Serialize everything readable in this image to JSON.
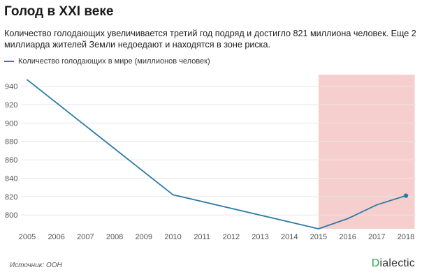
{
  "header": {
    "title": "Голод в XXI веке",
    "subtitle": "Количество голодающих увеличивается третий год подряд и достигло 821 миллиона человек. Еще 2 миллиарда жителей Земли недоедают и находятся в зоне риска."
  },
  "colors": {
    "line": "#2d7ba3",
    "highlight": "#f4c6c6",
    "grid": "#e6e6e6"
  },
  "chart_data": {
    "type": "line",
    "title": "Голод в XXI веке",
    "xlabel": "",
    "ylabel": "",
    "x": [
      2005,
      2006,
      2007,
      2008,
      2009,
      2010,
      2011,
      2012,
      2013,
      2014,
      2015,
      2016,
      2017,
      2018
    ],
    "categories": [
      "2005",
      "2006",
      "2007",
      "2008",
      "2009",
      "2010",
      "2011",
      "2012",
      "2013",
      "2014",
      "2015",
      "2016",
      "2017",
      "2018"
    ],
    "series": [
      {
        "name": "Количество голодающих в мире (миллионов человек)",
        "x": [
          2005,
          2010,
          2015,
          2016,
          2017,
          2018
        ],
        "values": [
          947,
          822,
          785,
          796,
          811,
          821
        ]
      }
    ],
    "ylim": [
      785,
      945
    ],
    "yticks": [
      800,
      820,
      840,
      860,
      880,
      900,
      920,
      940
    ],
    "grid": true,
    "highlight_range": [
      2015,
      2018.3
    ],
    "endpoint_marker": 2018
  },
  "footer": {
    "source": "Источник: ООН",
    "brand_first": "D",
    "brand_rest": "ialectic"
  }
}
